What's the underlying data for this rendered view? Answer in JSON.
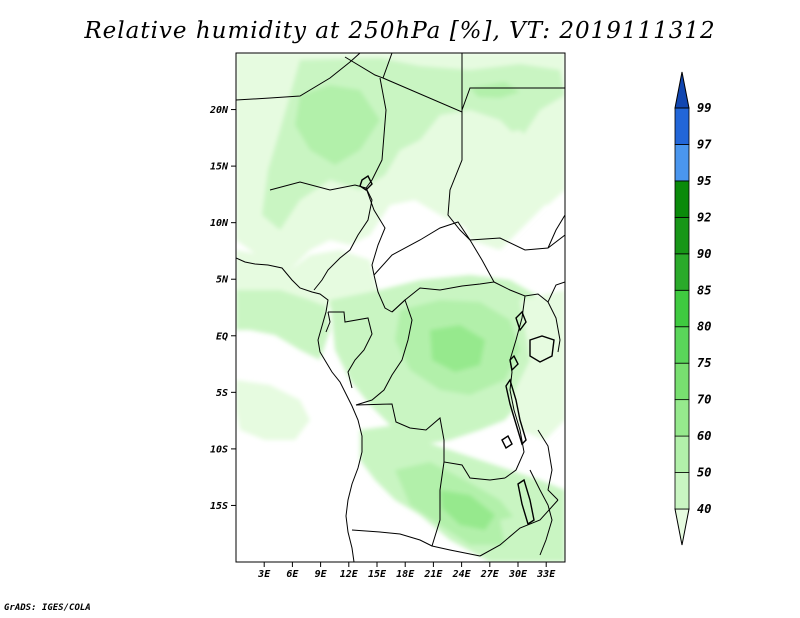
{
  "title": "Relative humidity at 250hPa [%], VT: 2019111312",
  "credit": "GrADS: IGES/COLA",
  "map": {
    "lon_range": [
      0,
      35
    ],
    "lat_range": [
      -20,
      25
    ],
    "lon_ticks": [
      "3E",
      "6E",
      "9E",
      "12E",
      "15E",
      "18E",
      "21E",
      "24E",
      "27E",
      "30E",
      "33E"
    ],
    "lat_ticks": [
      "20N",
      "15N",
      "10N",
      "5N",
      "EQ",
      "5S",
      "10S",
      "15S"
    ],
    "border_color": "#000000",
    "background_color": "#ffffff"
  },
  "colorbar": {
    "levels": [
      "40",
      "50",
      "60",
      "70",
      "75",
      "80",
      "85",
      "90",
      "92",
      "95",
      "97",
      "99"
    ],
    "colors": [
      "#e6fbe0",
      "#c9f5c2",
      "#b2f0aa",
      "#96e98d",
      "#78df70",
      "#5ad65a",
      "#3fca40",
      "#2aaa2a",
      "#179617",
      "#0a8a0a",
      "#4a96ee",
      "#2266d8",
      "#1146b0"
    ]
  }
}
